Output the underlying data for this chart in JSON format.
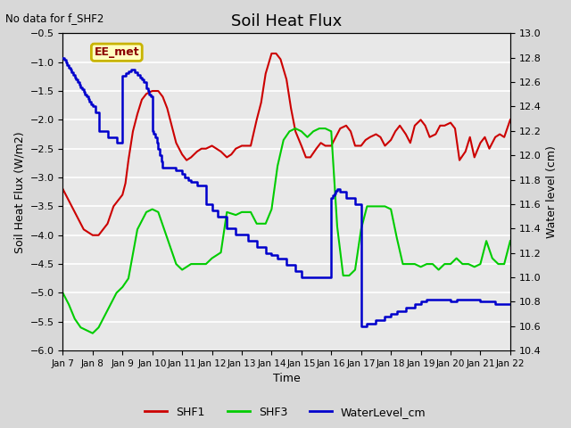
{
  "title": "Soil Heat Flux",
  "title_note": "No data for f_SHF2",
  "xlabel": "Time",
  "ylabel_left": "Soil Heat Flux (W/m2)",
  "ylabel_right": "Water level (cm)",
  "ylim_left": [
    -6.0,
    -0.5
  ],
  "ylim_right": [
    10.4,
    13.0
  ],
  "yticks_left": [
    -6.0,
    -5.5,
    -5.0,
    -4.5,
    -4.0,
    -3.5,
    -3.0,
    -2.5,
    -2.0,
    -1.5,
    -1.0,
    -0.5
  ],
  "yticks_right": [
    10.4,
    10.6,
    10.8,
    11.0,
    11.2,
    11.4,
    11.6,
    11.8,
    12.0,
    12.2,
    12.4,
    12.6,
    12.8,
    13.0
  ],
  "xtick_labels": [
    "Jan 7",
    "Jan 8",
    "Jan 9",
    "Jan 10",
    "Jan 11",
    "Jan 12",
    "Jan 13",
    "Jan 14",
    "Jan 15",
    "Jan 16",
    "Jan 17",
    "Jan 18",
    "Jan 19",
    "Jan 20",
    "Jan 21",
    "Jan 22"
  ],
  "legend_box_label": "EE_met",
  "legend_box_color": "#c8b400",
  "legend_box_bg": "#ffffc0",
  "bg_color": "#d8d8d8",
  "plot_bg_color": "#e8e8e8",
  "shf1_color": "#cc0000",
  "shf3_color": "#00cc00",
  "water_color": "#0000cc",
  "shf1_x": [
    7.0,
    7.3,
    7.5,
    7.7,
    8.0,
    8.2,
    8.5,
    8.7,
    9.0,
    9.1,
    9.2,
    9.35,
    9.5,
    9.65,
    9.8,
    10.0,
    10.2,
    10.35,
    10.5,
    10.65,
    10.8,
    11.0,
    11.15,
    11.3,
    11.5,
    11.65,
    11.8,
    12.0,
    12.15,
    12.3,
    12.5,
    12.65,
    12.8,
    13.0,
    13.15,
    13.3,
    13.5,
    13.65,
    13.8,
    14.0,
    14.15,
    14.3,
    14.5,
    14.65,
    14.8,
    15.0,
    15.15,
    15.3,
    15.5,
    15.65,
    15.8,
    16.0,
    16.15,
    16.3,
    16.5,
    16.65,
    16.8,
    17.0,
    17.15,
    17.3,
    17.5,
    17.65,
    17.8,
    18.0,
    18.15,
    18.3,
    18.5,
    18.65,
    18.8,
    19.0,
    19.15,
    19.3,
    19.5,
    19.65,
    19.8,
    20.0,
    20.15,
    20.3,
    20.5,
    20.65,
    20.8,
    21.0,
    21.15,
    21.3,
    21.5,
    21.65,
    21.8,
    22.0
  ],
  "shf1_y": [
    -3.2,
    -3.5,
    -3.7,
    -3.9,
    -4.0,
    -4.0,
    -3.8,
    -3.5,
    -3.3,
    -3.1,
    -2.7,
    -2.2,
    -1.9,
    -1.65,
    -1.55,
    -1.5,
    -1.5,
    -1.6,
    -1.8,
    -2.1,
    -2.4,
    -2.6,
    -2.7,
    -2.65,
    -2.55,
    -2.5,
    -2.5,
    -2.45,
    -2.5,
    -2.55,
    -2.65,
    -2.6,
    -2.5,
    -2.45,
    -2.45,
    -2.45,
    -2.0,
    -1.7,
    -1.2,
    -0.85,
    -0.85,
    -0.95,
    -1.3,
    -1.8,
    -2.2,
    -2.45,
    -2.65,
    -2.65,
    -2.5,
    -2.4,
    -2.45,
    -2.45,
    -2.3,
    -2.15,
    -2.1,
    -2.2,
    -2.45,
    -2.45,
    -2.35,
    -2.3,
    -2.25,
    -2.3,
    -2.45,
    -2.35,
    -2.2,
    -2.1,
    -2.25,
    -2.4,
    -2.1,
    -2.0,
    -2.1,
    -2.3,
    -2.25,
    -2.1,
    -2.1,
    -2.05,
    -2.15,
    -2.7,
    -2.55,
    -2.3,
    -2.65,
    -2.4,
    -2.3,
    -2.5,
    -2.3,
    -2.25,
    -2.3,
    -2.0
  ],
  "shf3_x": [
    7.0,
    7.2,
    7.4,
    7.6,
    7.8,
    8.0,
    8.2,
    8.5,
    8.8,
    9.0,
    9.2,
    9.5,
    9.8,
    10.0,
    10.2,
    10.5,
    10.8,
    11.0,
    11.3,
    11.5,
    11.8,
    12.0,
    12.3,
    12.5,
    12.8,
    13.0,
    13.3,
    13.5,
    13.8,
    14.0,
    14.2,
    14.4,
    14.6,
    14.8,
    15.0,
    15.2,
    15.4,
    15.6,
    15.8,
    16.0,
    16.2,
    16.4,
    16.6,
    16.8,
    17.0,
    17.2,
    17.4,
    17.6,
    17.8,
    18.0,
    18.2,
    18.4,
    18.6,
    18.8,
    19.0,
    19.2,
    19.4,
    19.6,
    19.8,
    20.0,
    20.2,
    20.4,
    20.6,
    20.8,
    21.0,
    21.2,
    21.4,
    21.6,
    21.8,
    22.0
  ],
  "shf3_y": [
    -5.0,
    -5.2,
    -5.45,
    -5.6,
    -5.65,
    -5.7,
    -5.6,
    -5.3,
    -5.0,
    -4.9,
    -4.75,
    -3.9,
    -3.6,
    -3.55,
    -3.6,
    -4.05,
    -4.5,
    -4.6,
    -4.5,
    -4.5,
    -4.5,
    -4.4,
    -4.3,
    -3.6,
    -3.65,
    -3.6,
    -3.6,
    -3.8,
    -3.8,
    -3.55,
    -2.8,
    -2.35,
    -2.2,
    -2.15,
    -2.2,
    -2.3,
    -2.2,
    -2.15,
    -2.15,
    -2.2,
    -3.85,
    -4.7,
    -4.7,
    -4.6,
    -3.9,
    -3.5,
    -3.5,
    -3.5,
    -3.5,
    -3.55,
    -4.05,
    -4.5,
    -4.5,
    -4.5,
    -4.55,
    -4.5,
    -4.5,
    -4.6,
    -4.5,
    -4.5,
    -4.4,
    -4.5,
    -4.5,
    -4.55,
    -4.5,
    -4.1,
    -4.4,
    -4.5,
    -4.5,
    -4.1
  ],
  "water_x": [
    7.0,
    7.05,
    7.1,
    7.15,
    7.2,
    7.25,
    7.3,
    7.35,
    7.4,
    7.45,
    7.5,
    7.55,
    7.6,
    7.65,
    7.7,
    7.75,
    7.8,
    7.85,
    7.9,
    7.95,
    8.0,
    8.1,
    8.2,
    8.5,
    8.8,
    9.0,
    9.1,
    9.2,
    9.3,
    9.4,
    9.5,
    9.6,
    9.65,
    9.7,
    9.8,
    9.85,
    9.9,
    9.95,
    10.0,
    10.05,
    10.1,
    10.15,
    10.2,
    10.25,
    10.3,
    10.35,
    10.5,
    10.8,
    11.0,
    11.1,
    11.2,
    11.3,
    11.5,
    11.8,
    12.0,
    12.2,
    12.5,
    12.8,
    13.0,
    13.2,
    13.5,
    13.8,
    14.0,
    14.2,
    14.5,
    14.8,
    15.0,
    15.5,
    16.0,
    16.05,
    16.1,
    16.15,
    16.2,
    16.25,
    16.3,
    16.5,
    16.8,
    17.0,
    17.2,
    17.5,
    17.8,
    18.0,
    18.2,
    18.5,
    18.8,
    19.0,
    19.2,
    19.5,
    19.8,
    20.0,
    20.2,
    20.5,
    20.8,
    21.0,
    21.5,
    22.0
  ],
  "water_right_y": [
    12.8,
    12.78,
    12.76,
    12.74,
    12.72,
    12.7,
    12.68,
    12.66,
    12.64,
    12.62,
    12.6,
    12.58,
    12.56,
    12.54,
    12.52,
    12.5,
    12.48,
    12.46,
    12.44,
    12.42,
    12.4,
    12.35,
    12.2,
    12.15,
    12.1,
    12.65,
    12.67,
    12.69,
    12.7,
    12.68,
    12.66,
    12.64,
    12.62,
    12.6,
    12.55,
    12.53,
    12.5,
    12.48,
    12.2,
    12.18,
    12.15,
    12.1,
    12.05,
    12.0,
    11.95,
    11.9,
    11.9,
    11.88,
    11.85,
    11.82,
    11.8,
    11.78,
    11.75,
    11.6,
    11.55,
    11.5,
    11.4,
    11.35,
    11.35,
    11.3,
    11.25,
    11.2,
    11.18,
    11.15,
    11.1,
    11.05,
    11.0,
    11.0,
    11.65,
    11.67,
    11.69,
    11.71,
    11.72,
    11.72,
    11.7,
    11.65,
    11.6,
    10.6,
    10.62,
    10.65,
    10.68,
    10.7,
    10.72,
    10.75,
    10.78,
    10.8,
    10.82,
    10.82,
    10.82,
    10.8,
    10.82,
    10.82,
    10.82,
    10.8,
    10.78,
    10.78
  ]
}
